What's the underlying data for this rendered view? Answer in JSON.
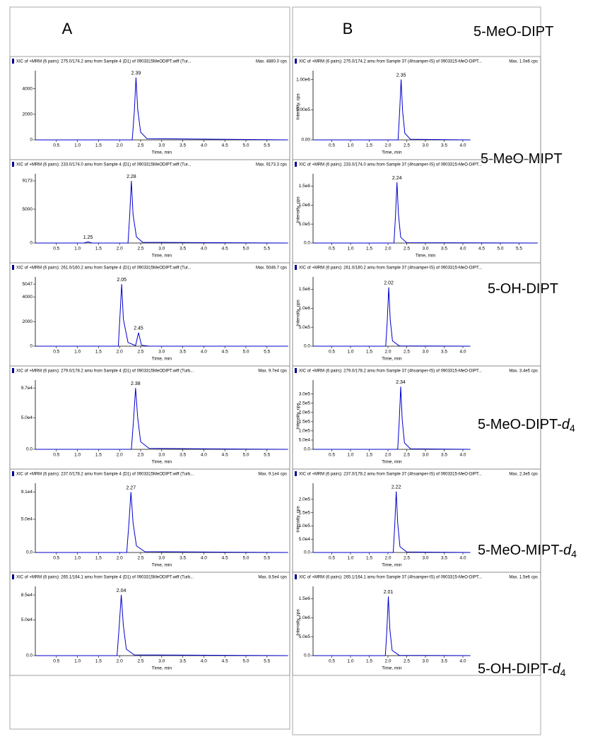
{
  "columns": [
    "A",
    "B"
  ],
  "compounds": [
    {
      "text": "5-MeO-DIPT"
    },
    {
      "text": "5-MeO-MIPT"
    },
    {
      "text": "5-OH-DIPT"
    },
    {
      "text": "5-MeO-DIPT-",
      "italic": "d",
      "sub": "4"
    },
    {
      "text": "5-MeO-MIPT-",
      "italic": "d",
      "sub": "4"
    },
    {
      "text": "5-OH-DIPT-",
      "italic": "d",
      "sub": "4"
    }
  ],
  "chart_data": [
    {
      "type": "line",
      "title": "XIC of +MRM (6 pairs): 275.0/174.2 amu from Sample 4 (D1) of 0903315MeODIPT.wiff (Tur...",
      "max_label": "Max. 4880.0 cps",
      "xlabel": "Time, min",
      "color": "#0000cc",
      "xlim": [
        0,
        6
      ],
      "xticks": [
        0.5,
        {
          "value": 1,
          "label": "1.0"
        },
        1.5,
        {
          "value": 2,
          "label": "2.0"
        },
        2.5,
        {
          "value": 3,
          "label": "3.0"
        },
        3.5,
        {
          "value": 4,
          "label": "4.0"
        },
        4.5,
        {
          "value": 5,
          "label": "5.0"
        },
        5.5
      ],
      "ylim": [
        0,
        5200
      ],
      "yticks": [
        0,
        2000,
        4000
      ],
      "x": [
        0,
        2.3,
        2.35,
        2.39,
        2.43,
        2.5,
        2.65,
        6
      ],
      "values": [
        0,
        0,
        2200,
        4880,
        2400,
        600,
        100,
        0
      ],
      "peaks": [
        2.39
      ]
    },
    {
      "type": "line",
      "title": "XIC of +MRM (6 pairs): 233.0/174.0 amu from Sample 4 (D1) of 0903315MeODIPT.wiff (Tur...",
      "max_label": "Max. 9173.3 cps",
      "xlabel": "Time, min",
      "color": "#0000cc",
      "xlim": [
        0,
        6
      ],
      "xticks": [
        0.5,
        {
          "value": 1,
          "label": "1.0"
        },
        1.5,
        {
          "value": 2,
          "label": "2.0"
        },
        2.5,
        {
          "value": 3,
          "label": "3.0"
        },
        3.5,
        {
          "value": 4,
          "label": "4.0"
        },
        4.5,
        {
          "value": 5,
          "label": "5.0"
        },
        5.5
      ],
      "ylim": [
        0,
        9800
      ],
      "yticks": [
        0,
        5000,
        9173
      ],
      "x": [
        0,
        1.15,
        1.25,
        1.35,
        2.2,
        2.24,
        2.28,
        2.32,
        2.4,
        2.55,
        6
      ],
      "values": [
        0,
        0,
        180,
        0,
        0,
        4000,
        9173,
        4200,
        900,
        100,
        0
      ],
      "peaks": [
        1.25,
        2.28
      ]
    },
    {
      "type": "line",
      "title": "XIC of +MRM (6 pairs): 261.0/160.2 amu from Sample 4 (D1) of 0903315MeODIPT.wiff (Tur...",
      "max_label": "Max. 5046.7 cps",
      "xlabel": "Time, min",
      "color": "#0000cc",
      "xlim": [
        0,
        6
      ],
      "xticks": [
        0.5,
        {
          "value": 1,
          "label": "1.0"
        },
        1.5,
        {
          "value": 2,
          "label": "2.0"
        },
        2.5,
        {
          "value": 3,
          "label": "3.0"
        },
        3.5,
        {
          "value": 4,
          "label": "4.0"
        },
        4.5,
        {
          "value": 5,
          "label": "5.0"
        },
        5.5
      ],
      "ylim": [
        0,
        5400
      ],
      "yticks": [
        0,
        2000,
        4000,
        5047
      ],
      "x": [
        0,
        1.97,
        2.01,
        2.05,
        2.09,
        2.2,
        2.38,
        2.45,
        2.52,
        2.7,
        6
      ],
      "values": [
        0,
        0,
        2500,
        5047,
        2200,
        300,
        50,
        1100,
        80,
        0,
        0
      ],
      "peaks": [
        2.05,
        2.45
      ]
    },
    {
      "type": "line",
      "title": "XIC of +MRM (6 pairs): 279.0/178.2 amu from Sample 4 (D1) of 0903315MeODIPT.wiff (Turb...",
      "max_label": "Max. 9.7e4 cps",
      "xlabel": "Time, min",
      "color": "#0000cc",
      "xlim": [
        0,
        6
      ],
      "xticks": [
        0.5,
        {
          "value": 1,
          "label": "1.0"
        },
        1.5,
        {
          "value": 2,
          "label": "2.0"
        },
        2.5,
        {
          "value": 3,
          "label": "3.0"
        },
        3.5,
        {
          "value": 4,
          "label": "4.0"
        },
        4.5,
        {
          "value": 5,
          "label": "5.0"
        },
        5.5
      ],
      "ylim": [
        0,
        105000
      ],
      "yticks": [
        {
          "value": 0,
          "label": "0.0"
        },
        {
          "value": 50000,
          "label": "5.0e4"
        },
        {
          "value": 97000,
          "label": "9.7e4"
        }
      ],
      "x": [
        0,
        2.28,
        2.33,
        2.38,
        2.43,
        2.5,
        2.7,
        6
      ],
      "values": [
        0,
        0,
        45000,
        97000,
        50000,
        12000,
        1500,
        0
      ],
      "peaks": [
        2.38
      ]
    },
    {
      "type": "line",
      "title": "XIC of +MRM (6 pairs): 237.0/178.2 amu from Sample 4 (D1) of 0903315MeODIPT.wiff (Turb...",
      "max_label": "Max. 9.1e4 cps",
      "xlabel": "Time, min",
      "color": "#0000cc",
      "xlim": [
        0,
        6
      ],
      "xticks": [
        0.5,
        {
          "value": 1,
          "label": "1.0"
        },
        1.5,
        {
          "value": 2,
          "label": "2.0"
        },
        2.5,
        {
          "value": 3,
          "label": "3.0"
        },
        3.5,
        {
          "value": 4,
          "label": "4.0"
        },
        4.5,
        {
          "value": 5,
          "label": "5.0"
        },
        5.5
      ],
      "ylim": [
        0,
        100000
      ],
      "yticks": [
        {
          "value": 0,
          "label": "0.0"
        },
        {
          "value": 50000,
          "label": "5.0e4"
        },
        {
          "value": 91000,
          "label": "9.1e4"
        }
      ],
      "x": [
        0,
        2.17,
        2.22,
        2.27,
        2.32,
        2.4,
        2.6,
        6
      ],
      "values": [
        0,
        0,
        42000,
        91000,
        45000,
        10000,
        1200,
        0
      ],
      "peaks": [
        2.27
      ]
    },
    {
      "type": "line",
      "title": "XIC of +MRM (6 pairs): 265.1/164.1 amu from Sample 4 (D1) of 0903315MeODIPT.wiff (Turb...",
      "max_label": "Max. 8.5e4 cps",
      "xlabel": "Time, min",
      "color": "#0000cc",
      "xlim": [
        0,
        6
      ],
      "xticks": [
        0.5,
        {
          "value": 1,
          "label": "1.0"
        },
        1.5,
        {
          "value": 2,
          "label": "2.0"
        },
        2.5,
        {
          "value": 3,
          "label": "3.0"
        },
        3.5,
        {
          "value": 4,
          "label": "4.0"
        },
        4.5,
        {
          "value": 5,
          "label": "5.0"
        },
        5.5
      ],
      "ylim": [
        0,
        93000
      ],
      "yticks": [
        {
          "value": 0,
          "label": "0.0"
        },
        {
          "value": 50000,
          "label": "5.0e4"
        },
        {
          "value": 85000,
          "label": "8.5e4"
        }
      ],
      "x": [
        0,
        1.94,
        1.99,
        2.04,
        2.09,
        2.16,
        2.35,
        6
      ],
      "values": [
        0,
        0,
        40000,
        85000,
        42000,
        9000,
        1000,
        0
      ],
      "peaks": [
        2.04
      ]
    },
    {
      "type": "line",
      "title": "XIC of +MRM (6 pairs): 275.0/174.2 amu from Sample 37 (4hsamper-IS) of 0903315-MeO-DIPT...",
      "max_label": "Max. 1.0e6 cps",
      "xlabel": "Time, min",
      "ylabel": "Intensity, cps",
      "color": "#0000cc",
      "xlim": [
        0,
        4.2
      ],
      "xticks": [
        0.5,
        {
          "value": 1,
          "label": "1.0"
        },
        1.5,
        {
          "value": 2,
          "label": "2.0"
        },
        2.5,
        {
          "value": 3,
          "label": "3.0"
        },
        3.5,
        {
          "value": 4,
          "label": "4.0"
        }
      ],
      "ylim": [
        0,
        1100000
      ],
      "yticks": [
        {
          "value": 0,
          "label": "0.00"
        },
        {
          "value": 500000,
          "label": "5.00e5"
        },
        {
          "value": 1000000,
          "label": "1.00e6"
        }
      ],
      "x": [
        0,
        2.27,
        2.31,
        2.35,
        2.39,
        2.45,
        2.6,
        4.2
      ],
      "values": [
        0,
        0,
        450000,
        1000000,
        480000,
        110000,
        10000,
        0
      ],
      "peaks": [
        2.35
      ]
    },
    {
      "type": "line",
      "title": "XIC of +MRM (6 pairs): 233.0/174.0 amu from Sample 37 (4hsamper-IS) of 0903315-MeO-DIPT...",
      "xlabel": "Time, min",
      "ylabel": "Intensity, cps",
      "color": "#0000cc",
      "xlim": [
        0,
        6
      ],
      "xticks": [
        0.5,
        {
          "value": 1,
          "label": "1.0"
        },
        1.5,
        {
          "value": 2,
          "label": "2.0"
        },
        2.5,
        {
          "value": 3,
          "label": "3.0"
        },
        3.5,
        {
          "value": 4,
          "label": "4.0"
        },
        4.5,
        {
          "value": 5,
          "label": "5.0"
        },
        5.5
      ],
      "ylim": [
        0,
        1750000
      ],
      "yticks": [
        {
          "value": 0,
          "label": "0.0"
        },
        {
          "value": 500000,
          "label": "5.0e5"
        },
        {
          "value": 1000000,
          "label": "1.0e6"
        },
        {
          "value": 1500000,
          "label": "1.5e6"
        }
      ],
      "x": [
        0,
        2.16,
        2.2,
        2.24,
        2.28,
        2.34,
        2.5,
        6
      ],
      "values": [
        0,
        0,
        700000,
        1600000,
        750000,
        150000,
        10000,
        0
      ],
      "peaks": [
        2.24
      ]
    },
    {
      "type": "line",
      "title": "XIC of +MRM (6 pairs): 261.0/160.2 amu from Sample 37 (4hsamper-IS) of 0903315-MeO-DIPT...",
      "xlabel": "Time, min",
      "ylabel": "Intensity, cps",
      "color": "#0000cc",
      "xlim": [
        0,
        4.2
      ],
      "xticks": [
        0.5,
        {
          "value": 1,
          "label": "1.0"
        },
        1.5,
        {
          "value": 2,
          "label": "2.0"
        },
        2.5,
        {
          "value": 3,
          "label": "3.0"
        },
        3.5,
        {
          "value": 4,
          "label": "4.0"
        }
      ],
      "ylim": [
        0,
        1750000
      ],
      "yticks": [
        {
          "value": 0,
          "label": "0.0"
        },
        {
          "value": 500000,
          "label": "5.0e5"
        },
        {
          "value": 1000000,
          "label": "1.0e6"
        },
        {
          "value": 1500000,
          "label": "1.5e6"
        }
      ],
      "x": [
        0,
        1.94,
        1.98,
        2.02,
        2.06,
        2.12,
        2.3,
        4.2
      ],
      "values": [
        0,
        0,
        650000,
        1550000,
        700000,
        140000,
        8000,
        0
      ],
      "peaks": [
        2.02
      ]
    },
    {
      "type": "line",
      "title": "XIC of +MRM (6 pairs): 279.0/178.2 amu from Sample 37 (4hsamper-IS) of 0903315-MeO-DIPT...",
      "max_label": "Max. 3.4e5 cps",
      "xlabel": "Time, min",
      "ylabel": "Intensity, cps",
      "color": "#0000cc",
      "xlim": [
        0,
        4.2
      ],
      "xticks": [
        0.5,
        {
          "value": 1,
          "label": "1.0"
        },
        1.5,
        {
          "value": 2,
          "label": "2.0"
        },
        2.5,
        {
          "value": 3,
          "label": "3.0"
        },
        3.5,
        {
          "value": 4,
          "label": "4.0"
        }
      ],
      "ylim": [
        0,
        360000
      ],
      "yticks": [
        {
          "value": 0,
          "label": "0.0"
        },
        {
          "value": 50000,
          "label": "5.0e4"
        },
        {
          "value": 100000,
          "label": "1.0e5"
        },
        {
          "value": 150000,
          "label": "1.5e5"
        },
        {
          "value": 200000,
          "label": "2.0e5"
        },
        {
          "value": 250000,
          "label": "2.5e5"
        },
        {
          "value": 300000,
          "label": "3.0e5"
        }
      ],
      "x": [
        0,
        2.26,
        2.3,
        2.34,
        2.38,
        2.44,
        2.6,
        4.2
      ],
      "values": [
        0,
        0,
        150000,
        340000,
        160000,
        35000,
        3000,
        0
      ],
      "peaks": [
        2.34
      ]
    },
    {
      "type": "line",
      "title": "XIC of +MRM (6 pairs): 237.0/178.2 amu from Sample 37 (4hsamper-IS) of 0903315-MeO-DIPT...",
      "max_label": "Max. 2.3e5 cps",
      "xlabel": "Time, min",
      "ylabel": "Intensity, cps",
      "color": "#0000cc",
      "xlim": [
        0,
        4.2
      ],
      "xticks": [
        0.5,
        {
          "value": 1,
          "label": "1.0"
        },
        1.5,
        {
          "value": 2,
          "label": "2.0"
        },
        2.5,
        {
          "value": 3,
          "label": "3.0"
        },
        3.5,
        {
          "value": 4,
          "label": "4.0"
        }
      ],
      "ylim": [
        0,
        250000
      ],
      "yticks": [
        {
          "value": 0,
          "label": "0.0"
        },
        {
          "value": 50000,
          "label": "5.0e4"
        },
        {
          "value": 100000,
          "label": "1.0e5"
        },
        {
          "value": 150000,
          "label": "1.5e5"
        },
        {
          "value": 200000,
          "label": "2.0e5"
        }
      ],
      "x": [
        0,
        2.14,
        2.18,
        2.22,
        2.26,
        2.32,
        2.5,
        4.2
      ],
      "values": [
        0,
        0,
        100000,
        230000,
        110000,
        22000,
        2000,
        0
      ],
      "peaks": [
        2.22
      ]
    },
    {
      "type": "line",
      "title": "XIC of +MRM (6 pairs): 265.1/164.1 amu from Sample 37 (4hsamper-IS) of 0903315-MeO-DIPT...",
      "max_label": "Max. 1.5e6 cps",
      "xlabel": "Time, min",
      "ylabel": "Intensity, cps",
      "color": "#0000cc",
      "xlim": [
        0,
        4.2
      ],
      "xticks": [
        0.5,
        {
          "value": 1,
          "label": "1.0"
        },
        1.5,
        {
          "value": 2,
          "label": "2.0"
        },
        2.5,
        {
          "value": 3,
          "label": "3.0"
        },
        3.5,
        {
          "value": 4,
          "label": "4.0"
        }
      ],
      "ylim": [
        0,
        1750000
      ],
      "yticks": [
        {
          "value": 0,
          "label": "0.0"
        },
        {
          "value": 500000,
          "label": "5.0e5"
        },
        {
          "value": 1000000,
          "label": "1.0e6"
        },
        {
          "value": 1500000,
          "label": "1.5e6"
        }
      ],
      "x": [
        0,
        1.93,
        1.97,
        2.01,
        2.05,
        2.11,
        2.3,
        4.2
      ],
      "values": [
        0,
        0,
        660000,
        1560000,
        700000,
        140000,
        8000,
        0
      ],
      "peaks": [
        2.01
      ]
    }
  ]
}
